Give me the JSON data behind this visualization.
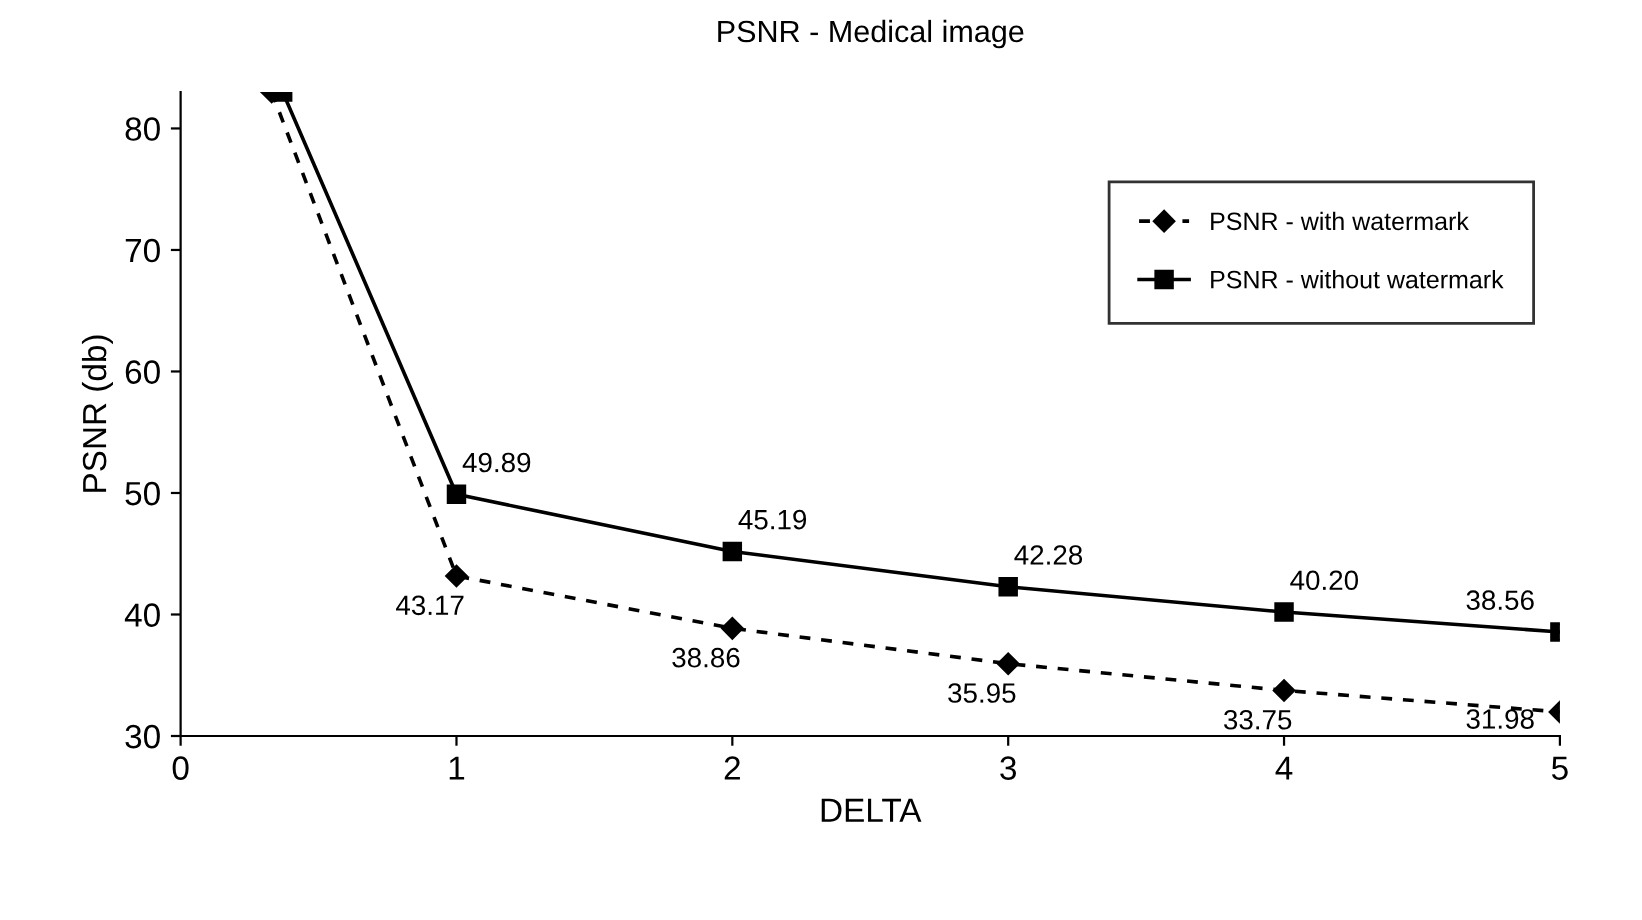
{
  "chart_data": {
    "type": "line",
    "title": "PSNR - Medical image",
    "xlabel": "DELTA",
    "ylabel": "PSNR (db)",
    "xlim": [
      0,
      5
    ],
    "xticks": [
      0,
      1,
      2,
      3,
      4,
      5
    ],
    "ylim": [
      30,
      83
    ],
    "yticks": [
      30,
      40,
      50,
      60,
      70,
      80
    ],
    "grid": false,
    "legend": "top right",
    "series": [
      {
        "name": "PSNR - with watermark",
        "color": "#000000",
        "marker": "diamond",
        "line_style": "dashed",
        "x": [
          0.33,
          1,
          2,
          3,
          4,
          5
        ],
        "values": [
          83,
          43.17,
          38.86,
          35.95,
          33.75,
          31.98
        ],
        "value_labels": [
          null,
          "43.17",
          "38.86",
          "35.95",
          "33.75",
          "31.98"
        ]
      },
      {
        "name": "PSNR - without watermark",
        "color": "#000000",
        "marker": "square",
        "line_style": "solid",
        "x": [
          0.37,
          1,
          2,
          3,
          4,
          5
        ],
        "values": [
          83,
          49.89,
          45.19,
          42.28,
          40.2,
          38.56
        ],
        "value_labels": [
          null,
          "49.89",
          "45.19",
          "42.28",
          "40.20",
          "38.56"
        ]
      }
    ]
  }
}
